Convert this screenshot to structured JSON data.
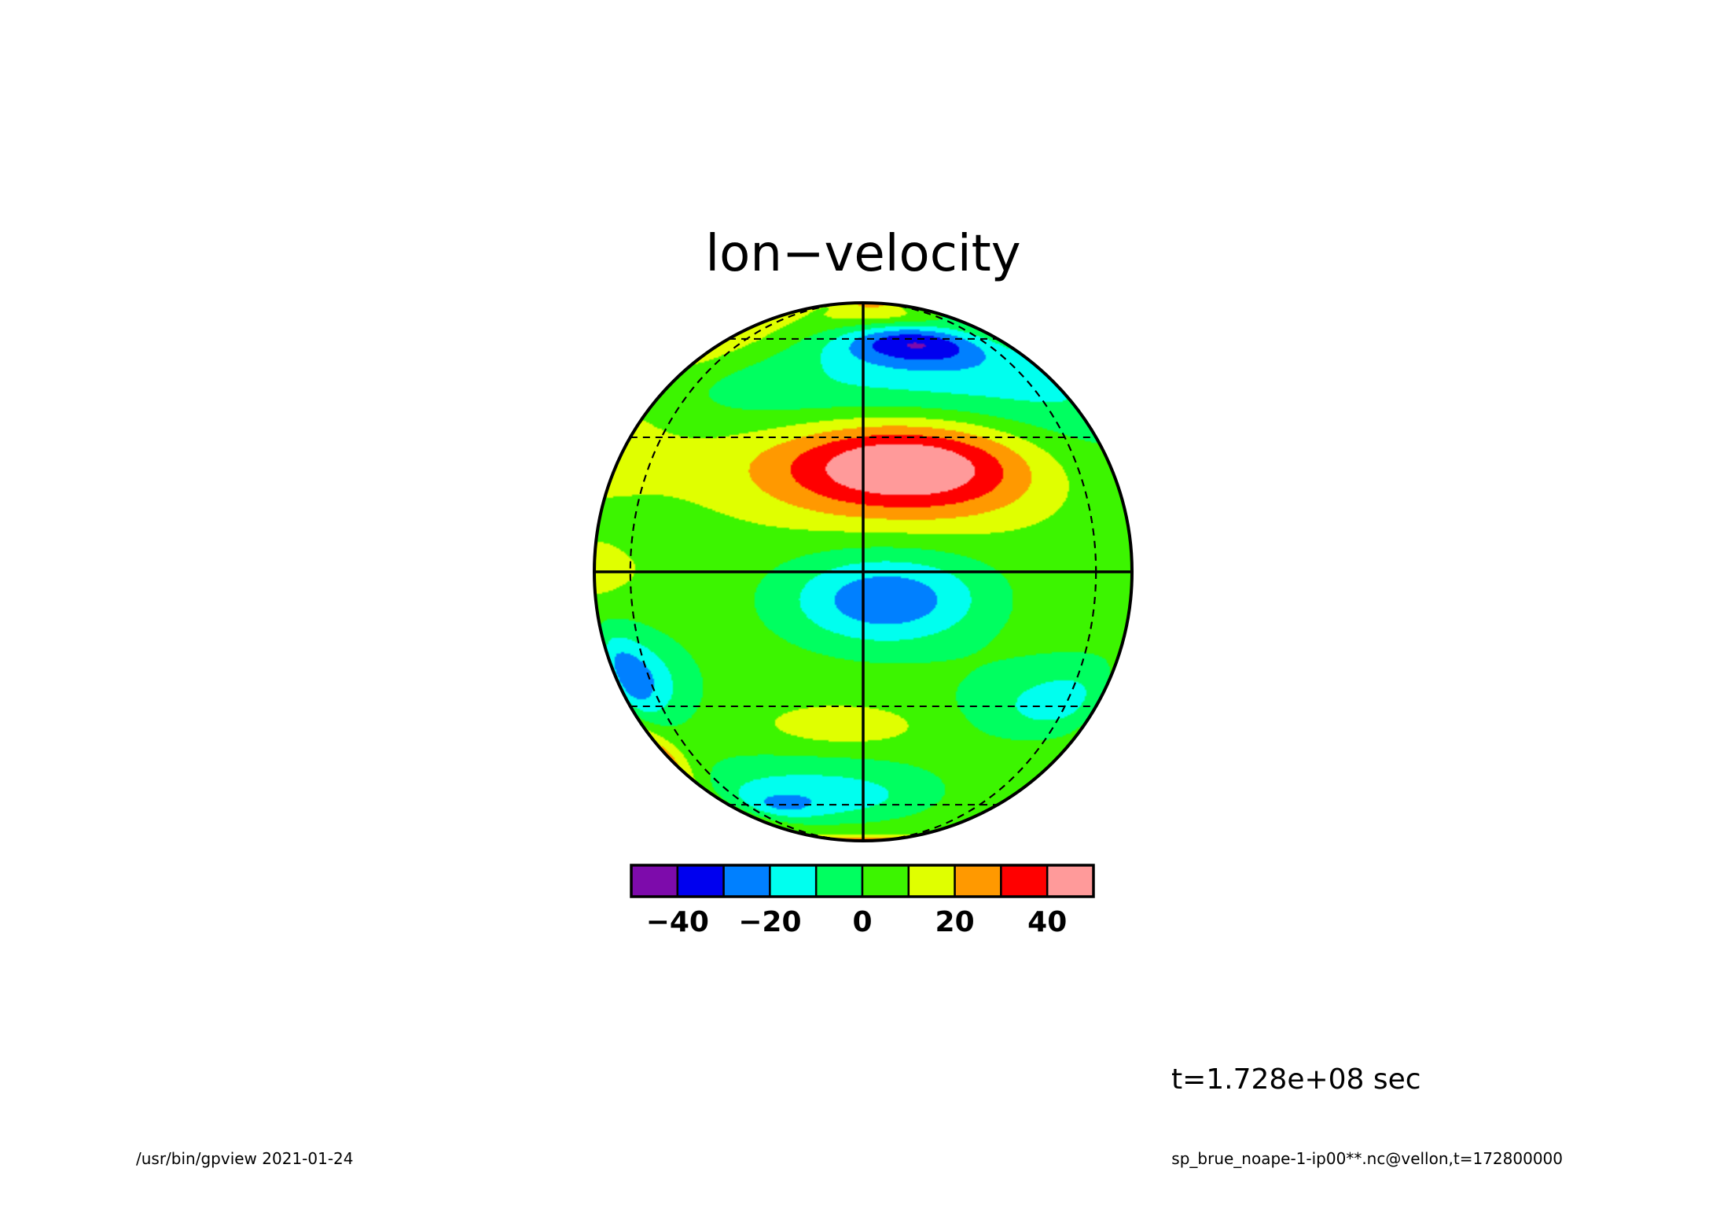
{
  "chart_data": {
    "type": "heatmap",
    "projection": "orthographic",
    "title": "lon−velocity",
    "colorbar": {
      "colors": [
        "#7d0bab",
        "#0000ef",
        "#0080ff",
        "#00ffef",
        "#00ff60",
        "#3cf500",
        "#e0ff00",
        "#ff9900",
        "#ff0000",
        "#ff9a9a"
      ],
      "bounds": [
        -50,
        -40,
        -30,
        -20,
        -10,
        0,
        10,
        20,
        30,
        40,
        50
      ],
      "tick_values": [
        -40,
        -20,
        0,
        20,
        40
      ],
      "tick_labels": [
        "−40",
        "−20",
        "0",
        "20",
        "40"
      ]
    },
    "grid": {
      "meridians_deg": [
        -60,
        60
      ],
      "parallels_deg": [
        -60,
        -30,
        30,
        60
      ],
      "solid_meridian_deg": 0,
      "solid_parallel_deg": 0
    },
    "field_blobs": [
      {
        "lon": 10,
        "lat": 23,
        "lon_width": 22,
        "lat_width": 8,
        "amp": 48
      },
      {
        "lon": 20,
        "lat": 58,
        "lon_width": 22,
        "lat_width": 6,
        "amp": -38
      },
      {
        "lon": 0,
        "lat": 42,
        "lon_width": 80,
        "lat_width": 9,
        "amp": -14
      },
      {
        "lon": -75,
        "lat": 60,
        "lon_width": 25,
        "lat_width": 15,
        "amp": 12
      },
      {
        "lon": 100,
        "lat": 55,
        "lon_width": 60,
        "lat_width": 15,
        "amp": -12
      },
      {
        "lon": 10,
        "lat": 74,
        "lon_width": 25,
        "lat_width": 6,
        "amp": 14
      },
      {
        "lon": 20,
        "lat": 87,
        "lon_width": 40,
        "lat_width": 5,
        "amp": 22
      },
      {
        "lon": -80,
        "lat": 28,
        "lon_width": 50,
        "lat_width": 10,
        "amp": 10
      },
      {
        "lon": 5,
        "lat": -6,
        "lon_width": 15,
        "lat_width": 7,
        "amp": -33
      },
      {
        "lon": -70,
        "lat": -23,
        "lon_width": 15,
        "lat_width": 7,
        "amp": -34
      },
      {
        "lon": 55,
        "lat": -29,
        "lon_width": 20,
        "lat_width": 7,
        "amp": -20
      },
      {
        "lon": -18,
        "lat": -56,
        "lon_width": 35,
        "lat_width": 8,
        "amp": -22
      },
      {
        "lon": -40,
        "lat": -61,
        "lon_width": 14,
        "lat_width": 4,
        "amp": -12
      },
      {
        "lon": -5,
        "lat": -35,
        "lon_width": 15,
        "lat_width": 4,
        "amp": 12
      },
      {
        "lon": -85,
        "lat": -43,
        "lon_width": 14,
        "lat_width": 6,
        "amp": 20
      },
      {
        "lon": 0,
        "lat": -87,
        "lon_width": 60,
        "lat_width": 5,
        "amp": 36
      },
      {
        "lon": -80,
        "lat": 0,
        "lon_width": 20,
        "lat_width": 5,
        "amp": 9
      },
      {
        "lon": 60,
        "lat": -50,
        "lon_width": 30,
        "lat_width": 10,
        "amp": 5
      }
    ],
    "time_label": "t=1.728e+08 sec",
    "footer": {
      "left": "/usr/bin/gpview  2021-01-24",
      "right": "sp_brue_noape-1-ip00**.nc@vellon,t=172800000"
    }
  }
}
